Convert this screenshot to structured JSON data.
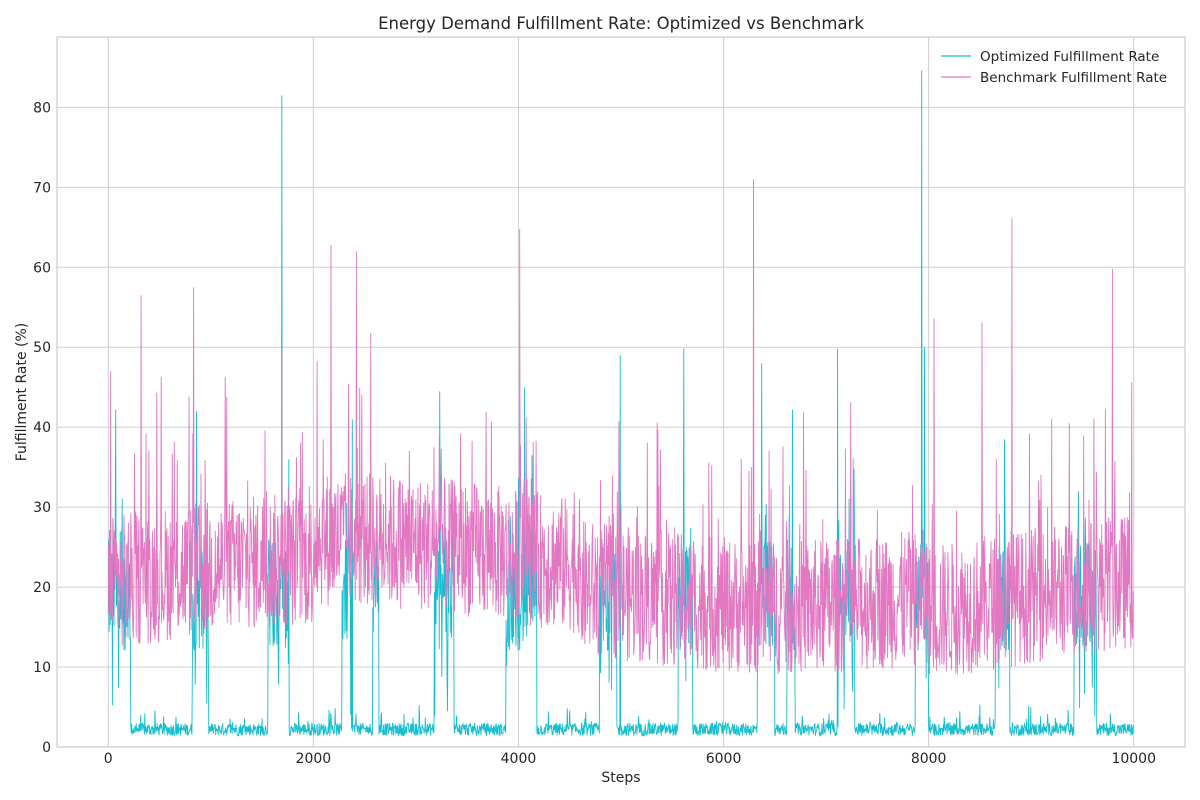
{
  "chart_data": {
    "type": "line",
    "title": "Energy Demand Fulfillment Rate: Optimized vs Benchmark",
    "xlabel": "Steps",
    "ylabel": "Fulfillment Rate (%)",
    "xlim": [
      -500,
      10500
    ],
    "ylim": [
      0,
      88.8
    ],
    "xticks": [
      0,
      2000,
      4000,
      6000,
      8000,
      10000
    ],
    "xtick_labels": [
      "0",
      "2000",
      "4000",
      "6000",
      "8000",
      "10000"
    ],
    "yticks": [
      0,
      10,
      20,
      30,
      40,
      50,
      60,
      70,
      80
    ],
    "ytick_labels": [
      "0",
      "10",
      "20",
      "30",
      "40",
      "50",
      "60",
      "70",
      "80"
    ],
    "grid": true,
    "legend_position": "top-right",
    "series": [
      {
        "name": "Optimized Fulfillment Rate",
        "color": "#17becf",
        "x_range": [
          0,
          9999
        ],
        "regimes": [
          {
            "start": 0,
            "end": 220,
            "level": "high"
          },
          {
            "start": 220,
            "end": 820,
            "level": "low"
          },
          {
            "start": 820,
            "end": 980,
            "level": "high"
          },
          {
            "start": 980,
            "end": 1560,
            "level": "low"
          },
          {
            "start": 1560,
            "end": 1760,
            "level": "high"
          },
          {
            "start": 1760,
            "end": 2280,
            "level": "low"
          },
          {
            "start": 2280,
            "end": 2370,
            "level": "high"
          },
          {
            "start": 2370,
            "end": 2580,
            "level": "low"
          },
          {
            "start": 2580,
            "end": 2640,
            "level": "high"
          },
          {
            "start": 2640,
            "end": 3180,
            "level": "low"
          },
          {
            "start": 3180,
            "end": 3370,
            "level": "high"
          },
          {
            "start": 3370,
            "end": 3880,
            "level": "low"
          },
          {
            "start": 3880,
            "end": 4180,
            "level": "high"
          },
          {
            "start": 4180,
            "end": 4790,
            "level": "low"
          },
          {
            "start": 4790,
            "end": 4960,
            "level": "high"
          },
          {
            "start": 4960,
            "end": 5560,
            "level": "low"
          },
          {
            "start": 5560,
            "end": 5700,
            "level": "high"
          },
          {
            "start": 5700,
            "end": 6330,
            "level": "low"
          },
          {
            "start": 6330,
            "end": 6500,
            "level": "high"
          },
          {
            "start": 6500,
            "end": 6620,
            "level": "low"
          },
          {
            "start": 6620,
            "end": 6700,
            "level": "high"
          },
          {
            "start": 6700,
            "end": 7120,
            "level": "low"
          },
          {
            "start": 7120,
            "end": 7280,
            "level": "high"
          },
          {
            "start": 7280,
            "end": 7870,
            "level": "low"
          },
          {
            "start": 7870,
            "end": 8000,
            "level": "high"
          },
          {
            "start": 8000,
            "end": 8650,
            "level": "low"
          },
          {
            "start": 8650,
            "end": 8790,
            "level": "high"
          },
          {
            "start": 8790,
            "end": 9420,
            "level": "low"
          },
          {
            "start": 9420,
            "end": 9640,
            "level": "high"
          },
          {
            "start": 9640,
            "end": 10000,
            "level": "low"
          }
        ],
        "low_regime_range": [
          1,
          5
        ],
        "high_regime_range": [
          10,
          36
        ],
        "notable_peaks": [
          {
            "x": 40,
            "y": 5.2
          },
          {
            "x": 70,
            "y": 42.2
          },
          {
            "x": 860,
            "y": 42.0
          },
          {
            "x": 1690,
            "y": 81.5
          },
          {
            "x": 1760,
            "y": 36.0
          },
          {
            "x": 2380,
            "y": 41.0
          },
          {
            "x": 3230,
            "y": 44.5
          },
          {
            "x": 4060,
            "y": 45.0
          },
          {
            "x": 4130,
            "y": 36.5
          },
          {
            "x": 4990,
            "y": 49.0
          },
          {
            "x": 5610,
            "y": 49.8
          },
          {
            "x": 6370,
            "y": 48.0
          },
          {
            "x": 6670,
            "y": 42.2
          },
          {
            "x": 7110,
            "y": 49.8
          },
          {
            "x": 7270,
            "y": 34.8
          },
          {
            "x": 7930,
            "y": 84.6
          },
          {
            "x": 7960,
            "y": 50.0
          },
          {
            "x": 8740,
            "y": 38.5
          },
          {
            "x": 9460,
            "y": 32.0
          }
        ]
      },
      {
        "name": "Benchmark Fulfillment Rate",
        "color": "#e377c2",
        "x_range": [
          0,
          9999
        ],
        "band_range": [
          10,
          35
        ],
        "notable_peaks": [
          {
            "x": 25,
            "y": 47.0
          },
          {
            "x": 320,
            "y": 56.5
          },
          {
            "x": 830,
            "y": 57.5
          },
          {
            "x": 1690,
            "y": 49.8
          },
          {
            "x": 2170,
            "y": 62.8
          },
          {
            "x": 2420,
            "y": 62.0
          },
          {
            "x": 2560,
            "y": 51.8
          },
          {
            "x": 4010,
            "y": 64.8
          },
          {
            "x": 6290,
            "y": 71.0
          },
          {
            "x": 8050,
            "y": 53.6
          },
          {
            "x": 8520,
            "y": 53.1
          },
          {
            "x": 8810,
            "y": 66.1
          },
          {
            "x": 9790,
            "y": 59.8
          },
          {
            "x": 9960,
            "y": 31.8
          }
        ]
      }
    ]
  }
}
